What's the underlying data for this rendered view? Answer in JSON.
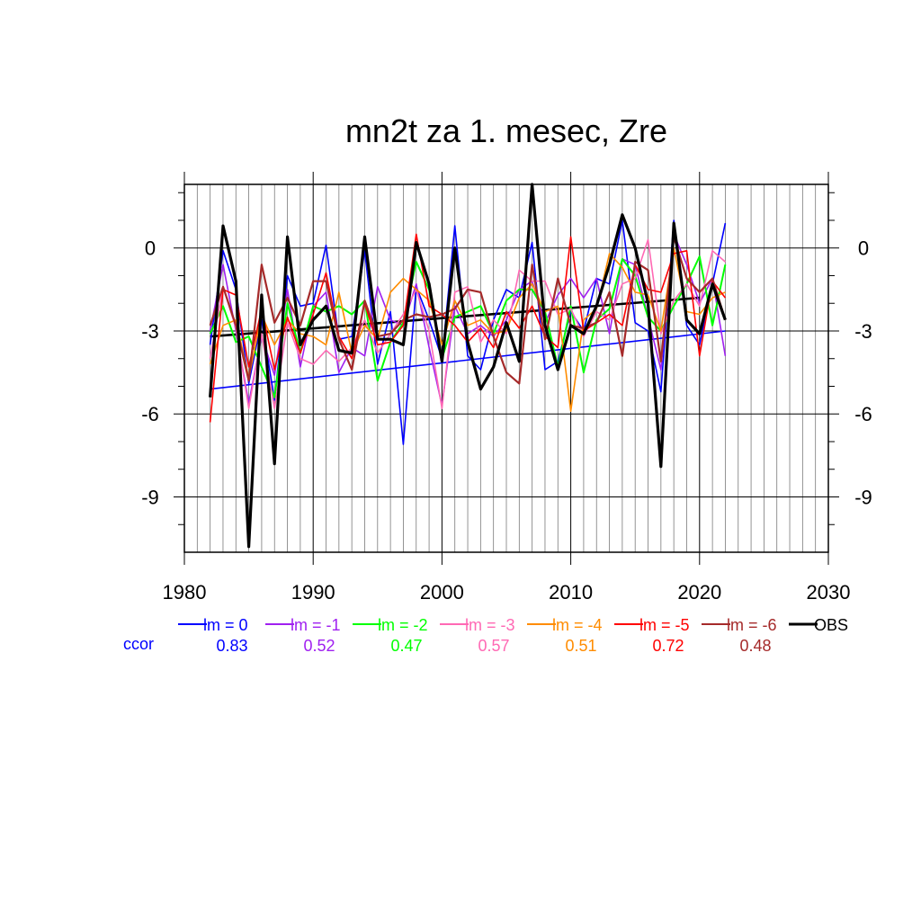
{
  "chart_data": {
    "type": "line",
    "title": "mn2t za 1. mesec, Zre",
    "xlabel": "",
    "ylabel": "",
    "xlim": [
      1980,
      2030
    ],
    "ylim": [
      -11,
      2.3
    ],
    "x_ticks": [
      1980,
      1990,
      2000,
      2010,
      2020,
      2030
    ],
    "y_ticks": [
      0,
      -3,
      -6,
      -9
    ],
    "x_tick_labels": [
      "1980",
      "1990",
      "2000",
      "2010",
      "2020",
      "2030"
    ],
    "y_tick_labels": [
      "0",
      "-3",
      "-6",
      "-9"
    ],
    "grid": true,
    "legend_position": "below",
    "ccor_label": "ccor",
    "x": [
      1982,
      1983,
      1984,
      1985,
      1986,
      1987,
      1988,
      1989,
      1990,
      1991,
      1992,
      1993,
      1994,
      1995,
      1996,
      1997,
      1998,
      1999,
      2000,
      2001,
      2002,
      2003,
      2004,
      2005,
      2006,
      2007,
      2008,
      2009,
      2010,
      2011,
      2012,
      2013,
      2014,
      2015,
      2016,
      2017,
      2018,
      2019,
      2020,
      2021,
      2022
    ],
    "series": [
      {
        "name": "lm = 0",
        "color": "#0000ff",
        "width": 1.6,
        "ccor": "0.83",
        "values": [
          -3.5,
          -0.1,
          -1.5,
          -4.9,
          -2.6,
          -5.5,
          -1.0,
          -2.1,
          -2.0,
          0.1,
          -3.3,
          -3.2,
          -0.1,
          -4.2,
          -2.3,
          -7.1,
          -1.4,
          -2.6,
          -4.0,
          0.8,
          -3.9,
          -4.4,
          -2.6,
          -1.5,
          -1.8,
          0.2,
          -4.4,
          -4.1,
          -2.3,
          -3.0,
          -1.1,
          -1.3,
          1.0,
          -2.7,
          -3.0,
          -5.2,
          1.0,
          -2.8,
          -3.5,
          -1.3,
          0.9
        ]
      },
      {
        "name": "lm = -1",
        "color": "#a020f0",
        "width": 1.6,
        "ccor": "0.52",
        "values": [
          -3.0,
          -0.6,
          -3.0,
          -5.6,
          -3.2,
          -4.6,
          -1.5,
          -4.3,
          -2.1,
          -1.6,
          -4.5,
          -3.6,
          -3.9,
          -1.4,
          -2.6,
          -2.8,
          -1.3,
          -3.6,
          -5.7,
          -2.1,
          -3.1,
          -2.8,
          -3.2,
          -2.6,
          -1.5,
          -1.2,
          -2.7,
          -1.7,
          -1.1,
          -1.8,
          -1.1,
          -3.1,
          -0.4,
          -0.6,
          -2.5,
          -4.4,
          0.5,
          -0.6,
          -2.0,
          -1.1,
          -3.9
        ]
      },
      {
        "name": "lm = -2",
        "color": "#00ff00",
        "width": 2.0,
        "ccor": "0.47",
        "values": [
          -3.1,
          -2.1,
          -3.4,
          -3.2,
          -4.3,
          -5.4,
          -2.0,
          -3.8,
          -2.1,
          -2.3,
          -2.1,
          -2.4,
          -1.9,
          -4.8,
          -3.4,
          -2.7,
          -0.5,
          -1.5,
          -4.0,
          -2.5,
          -2.3,
          -2.1,
          -3.1,
          -1.9,
          -1.5,
          -1.5,
          -2.3,
          -4.3,
          -2.1,
          -4.5,
          -2.6,
          -2.2,
          -0.4,
          -1.0,
          -2.5,
          -3.0,
          -2.1,
          -1.3,
          -0.3,
          -2.8,
          -0.6
        ]
      },
      {
        "name": "lm = -3",
        "color": "#ff69b4",
        "width": 1.6,
        "ccor": "0.57",
        "values": [
          -4.0,
          -1.4,
          -2.9,
          -5.8,
          -3.1,
          -5.8,
          -2.7,
          -4.0,
          -4.2,
          -3.7,
          -4.1,
          -3.6,
          -2.6,
          -3.8,
          -3.1,
          -2.4,
          -1.5,
          -3.0,
          -5.8,
          -1.6,
          -1.4,
          -3.4,
          -2.6,
          -3.1,
          -0.8,
          -1.2,
          -1.2,
          -2.4,
          -2.2,
          -3.2,
          -2.3,
          -2.6,
          -1.3,
          -1.1,
          0.3,
          -3.1,
          -1.9,
          -1.3,
          -2.1,
          -0.1,
          -0.5
        ]
      },
      {
        "name": "lm = -4",
        "color": "#ff8c00",
        "width": 1.6,
        "ccor": "0.51",
        "values": [
          -4.2,
          -2.8,
          -2.6,
          -4.7,
          -2.4,
          -3.5,
          -2.6,
          -3.1,
          -3.2,
          -3.5,
          -1.6,
          -3.8,
          -2.8,
          -3.3,
          -1.6,
          -1.1,
          -1.5,
          -1.9,
          -3.5,
          -1.9,
          -2.8,
          -2.6,
          -3.1,
          -3.0,
          -1.8,
          -1.3,
          -2.3,
          -2.1,
          -5.9,
          -2.6,
          -2.2,
          -0.2,
          -0.7,
          -1.6,
          -1.7,
          -3.0,
          0.0,
          -2.3,
          -2.4,
          -1.8,
          -1.6
        ]
      },
      {
        "name": "lm = -5",
        "color": "#ff0000",
        "width": 1.6,
        "ccor": "0.72",
        "values": [
          -6.3,
          -1.5,
          -1.7,
          -4.3,
          -2.2,
          -4.4,
          -2.5,
          -3.8,
          -2.4,
          -0.9,
          -3.2,
          -4.0,
          -2.0,
          -3.5,
          -3.4,
          -2.8,
          0.5,
          -2.1,
          -2.4,
          -2.8,
          -3.4,
          -2.9,
          -3.6,
          -2.3,
          -2.9,
          -2.1,
          -3.2,
          -3.6,
          0.4,
          -3.0,
          -2.7,
          -2.4,
          -2.8,
          -0.6,
          -1.5,
          -1.6,
          -0.2,
          -0.1,
          -3.9,
          -1.2,
          -1.8
        ]
      },
      {
        "name": "lm = -6",
        "color": "#a52a2a",
        "width": 2.2,
        "ccor": "0.48",
        "values": [
          -2.8,
          -1.4,
          -2.8,
          -4.8,
          -0.6,
          -2.7,
          -1.8,
          -2.8,
          -1.2,
          -1.2,
          -3.3,
          -4.4,
          -1.9,
          -3.2,
          -3.1,
          -2.6,
          -2.4,
          -2.5,
          -2.4,
          -2.2,
          -1.5,
          -1.6,
          -3.2,
          -4.5,
          -4.9,
          -0.6,
          -3.3,
          -1.1,
          -2.8,
          -2.9,
          -2.7,
          -1.6,
          -3.9,
          -0.5,
          -0.8,
          -4.1,
          0.4,
          -1.1,
          -1.6,
          -1.1,
          -2.6
        ]
      },
      {
        "name": "OBS",
        "color": "#000000",
        "width": 3.2,
        "ccor": "",
        "values": [
          -5.4,
          0.8,
          -1.2,
          -10.8,
          -1.7,
          -7.8,
          0.4,
          -3.5,
          -2.6,
          -2.1,
          -3.7,
          -3.8,
          0.4,
          -3.3,
          -3.3,
          -3.5,
          0.2,
          -1.3,
          -4.1,
          0.0,
          -3.4,
          -5.1,
          -4.3,
          -2.7,
          -4.1,
          2.3,
          -2.8,
          -4.4,
          -2.8,
          -3.1,
          -2.1,
          -0.6,
          1.2,
          0.0,
          -2.0,
          -7.9,
          0.9,
          -2.6,
          -3.1,
          -1.3,
          -2.6
        ]
      }
    ],
    "trend_lines": [
      {
        "name": "lm = 0 trend",
        "color": "#0000ff",
        "width": 1.6,
        "x": [
          1982,
          2022
        ],
        "y": [
          -5.1,
          -3.0
        ]
      },
      {
        "name": "OBS trend",
        "color": "#000000",
        "width": 2.6,
        "x": [
          1982,
          2020
        ],
        "y": [
          -3.2,
          -1.8
        ]
      }
    ]
  }
}
